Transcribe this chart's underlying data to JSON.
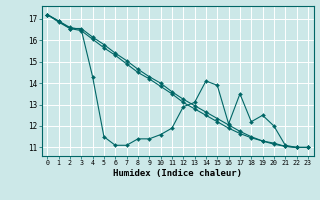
{
  "xlabel": "Humidex (Indice chaleur)",
  "bg_color": "#cce8e8",
  "grid_color": "#ffffff",
  "line_color": "#006666",
  "xlim": [
    -0.5,
    23.5
  ],
  "ylim": [
    10.6,
    17.6
  ],
  "yticks": [
    11,
    12,
    13,
    14,
    15,
    16,
    17
  ],
  "xticks": [
    0,
    1,
    2,
    3,
    4,
    5,
    6,
    7,
    8,
    9,
    10,
    11,
    12,
    13,
    14,
    15,
    16,
    17,
    18,
    19,
    20,
    21,
    22,
    23
  ],
  "series1": [
    17.2,
    16.9,
    16.6,
    16.5,
    14.3,
    11.5,
    11.1,
    11.1,
    11.4,
    11.4,
    11.6,
    11.9,
    12.9,
    13.1,
    14.1,
    13.9,
    12.1,
    13.5,
    12.2,
    12.5,
    12.0,
    11.1,
    11.0,
    11.0
  ],
  "series2": [
    17.2,
    16.9,
    16.55,
    16.55,
    16.15,
    15.8,
    15.4,
    15.05,
    14.65,
    14.3,
    14.0,
    13.6,
    13.25,
    12.95,
    12.65,
    12.35,
    12.05,
    11.75,
    11.5,
    11.3,
    11.2,
    11.05,
    11.0,
    11.0
  ],
  "series3": [
    17.2,
    16.85,
    16.55,
    16.45,
    16.05,
    15.65,
    15.3,
    14.9,
    14.5,
    14.2,
    13.85,
    13.5,
    13.1,
    12.8,
    12.5,
    12.2,
    11.9,
    11.65,
    11.45,
    11.3,
    11.15,
    11.05,
    11.0,
    11.0
  ],
  "markersize": 2.0,
  "linewidth": 0.8
}
